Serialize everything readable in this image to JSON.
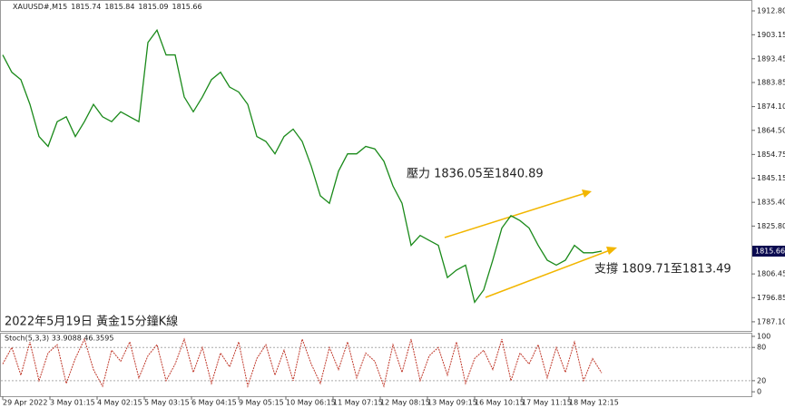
{
  "chart_data": {
    "type": "line",
    "symbol": "XAUUSD#,M15",
    "ohlc": [
      1815.74,
      1815.84,
      1815.09,
      1815.66
    ],
    "last_price": 1815.66,
    "annotations": [
      "壓力 1836.05至1840.89",
      "支撐 1809.71至1813.49",
      "2022年5月19日 黃金15分鐘K線"
    ],
    "x_labels": [
      "29 Apr 2022",
      "3 May 01:15",
      "4 May 02:15",
      "5 May 03:15",
      "6 May 04:15",
      "9 May 05:15",
      "10 May 06:15",
      "11 May 07:15",
      "12 May 08:15",
      "13 May 09:15",
      "16 May 10:15",
      "17 May 11:15",
      "18 May 12:15"
    ],
    "series": [
      {
        "name": "XAUUSD#",
        "color": "#1a8a1a",
        "values": [
          1895,
          1888,
          1885,
          1875,
          1862,
          1858,
          1868,
          1870,
          1862,
          1868,
          1875,
          1870,
          1868,
          1872,
          1870,
          1868,
          1900,
          1905,
          1895,
          1895,
          1878,
          1872,
          1878,
          1885,
          1888,
          1882,
          1880,
          1875,
          1862,
          1860,
          1855,
          1862,
          1865,
          1860,
          1850,
          1838,
          1835,
          1848,
          1855,
          1855,
          1858,
          1857,
          1852,
          1842,
          1835,
          1818,
          1822,
          1820,
          1818,
          1805,
          1808,
          1810,
          1795,
          1800,
          1812,
          1825,
          1830,
          1828,
          1825,
          1818,
          1812,
          1810,
          1812,
          1818,
          1815,
          1815,
          1815.66
        ]
      }
    ],
    "ylim": [
      1783.4,
      1917.2
    ],
    "yticks": [
      {
        "value": 1912.8,
        "label": "1912.80"
      },
      1903.15,
      1893.45,
      1883.85,
      {
        "value": 1874.1,
        "label": "1874.10"
      },
      {
        "value": 1864.5,
        "label": "1864.50"
      },
      1854.75,
      1845.15,
      {
        "value": 1835.4,
        "label": "1835.40"
      },
      {
        "value": 1825.8,
        "label": "1825.80"
      },
      1806.45,
      1796.85,
      {
        "value": 1787.1,
        "label": "1787.10"
      }
    ],
    "stoch": {
      "title": "Stoch(5,3,3) 33.9088 46.3595",
      "color": "#c0392b",
      "values": [
        50,
        80,
        30,
        90,
        20,
        70,
        85,
        15,
        60,
        95,
        40,
        10,
        75,
        55,
        90,
        25,
        65,
        85,
        20,
        50,
        95,
        35,
        80,
        15,
        70,
        45,
        90,
        10,
        60,
        85,
        30,
        75,
        20,
        95,
        50,
        15,
        80,
        40,
        90,
        25,
        70,
        55,
        10,
        85,
        35,
        95,
        20,
        65,
        80,
        30,
        90,
        15,
        60,
        75,
        40,
        95,
        20,
        70,
        50,
        85,
        25,
        80,
        35,
        90,
        20,
        60,
        34
      ],
      "ylim": [
        -8,
        106.5
      ],
      "yticks": [
        100,
        80,
        20,
        0
      ]
    }
  }
}
